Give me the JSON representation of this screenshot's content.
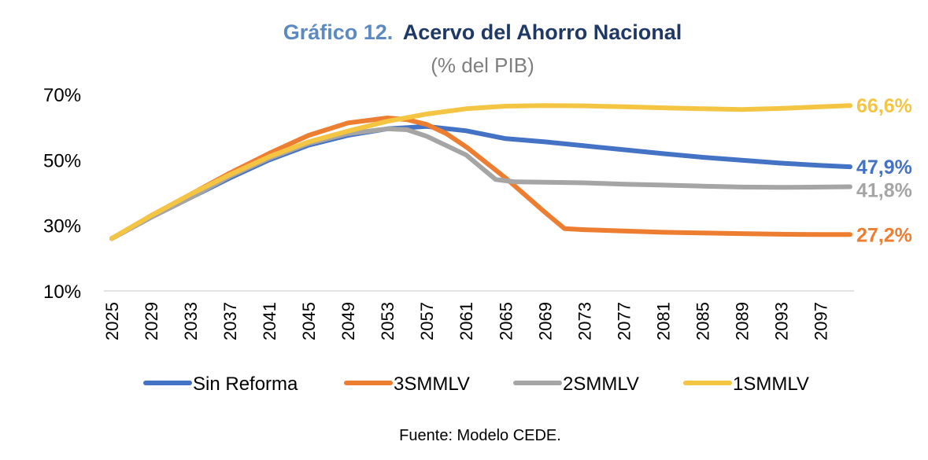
{
  "chart_data": {
    "type": "line",
    "title_prefix": "Gráfico 12.",
    "title": "Acervo del Ahorro Nacional",
    "subtitle": "(% del PIB)",
    "source": "Fuente: Modelo CEDE.",
    "xlabel": "",
    "ylabel": "",
    "ylim": [
      10,
      70
    ],
    "yticks": [
      {
        "value": 10,
        "label": "10%"
      },
      {
        "value": 30,
        "label": "30%"
      },
      {
        "value": 50,
        "label": "50%"
      },
      {
        "value": 70,
        "label": "70%"
      }
    ],
    "xlim": [
      2025,
      2100
    ],
    "xticks": [
      "2025",
      "2029",
      "2033",
      "2037",
      "2041",
      "2045",
      "2049",
      "2053",
      "2057",
      "2061",
      "2065",
      "2069",
      "2073",
      "2077",
      "2081",
      "2085",
      "2089",
      "2093",
      "2097"
    ],
    "grid": false,
    "legend": "bottom",
    "series": [
      {
        "name": "Sin Reforma",
        "color": "#4472c4",
        "end_label": "47,9%",
        "points": [
          [
            2025,
            26
          ],
          [
            2029,
            32.5
          ],
          [
            2033,
            38.5
          ],
          [
            2037,
            44.5
          ],
          [
            2041,
            50
          ],
          [
            2045,
            54.5
          ],
          [
            2049,
            57.5
          ],
          [
            2053,
            59.5
          ],
          [
            2057,
            60.2
          ],
          [
            2061,
            58.9
          ],
          [
            2065,
            56.5
          ],
          [
            2069,
            55.5
          ],
          [
            2073,
            54.3
          ],
          [
            2077,
            53.1
          ],
          [
            2081,
            51.9
          ],
          [
            2085,
            50.8
          ],
          [
            2089,
            49.9
          ],
          [
            2093,
            49.0
          ],
          [
            2097,
            48.3
          ],
          [
            2100,
            47.9
          ]
        ]
      },
      {
        "name": "3SMMLV",
        "color": "#ed7d31",
        "end_label": "27,2%",
        "points": [
          [
            2025,
            26
          ],
          [
            2029,
            33
          ],
          [
            2033,
            39.5
          ],
          [
            2037,
            46
          ],
          [
            2041,
            52
          ],
          [
            2045,
            57.5
          ],
          [
            2049,
            61.3
          ],
          [
            2053,
            62.8
          ],
          [
            2055,
            62.3
          ],
          [
            2057,
            60.8
          ],
          [
            2059,
            58
          ],
          [
            2061,
            54
          ],
          [
            2065,
            44.5
          ],
          [
            2069,
            34
          ],
          [
            2071,
            29
          ],
          [
            2073,
            28.7
          ],
          [
            2077,
            28.3
          ],
          [
            2081,
            27.9
          ],
          [
            2085,
            27.7
          ],
          [
            2089,
            27.5
          ],
          [
            2093,
            27.3
          ],
          [
            2097,
            27.2
          ],
          [
            2100,
            27.2
          ]
        ]
      },
      {
        "name": "2SMMLV",
        "color": "#a5a5a5",
        "end_label": "41,8%",
        "points": [
          [
            2025,
            26
          ],
          [
            2029,
            32.5
          ],
          [
            2033,
            38.5
          ],
          [
            2037,
            45
          ],
          [
            2041,
            50.5
          ],
          [
            2045,
            55
          ],
          [
            2049,
            58
          ],
          [
            2053,
            59.5
          ],
          [
            2055,
            59.2
          ],
          [
            2057,
            57.2
          ],
          [
            2061,
            51.5
          ],
          [
            2064,
            44
          ],
          [
            2066,
            43.3
          ],
          [
            2069,
            43.2
          ],
          [
            2073,
            43
          ],
          [
            2077,
            42.6
          ],
          [
            2081,
            42.3
          ],
          [
            2085,
            42
          ],
          [
            2089,
            41.7
          ],
          [
            2093,
            41.6
          ],
          [
            2097,
            41.7
          ],
          [
            2100,
            41.8
          ]
        ]
      },
      {
        "name": "1SMMLV",
        "color": "#f4c542",
        "end_label": "66,6%",
        "points": [
          [
            2025,
            26
          ],
          [
            2029,
            33
          ],
          [
            2033,
            39.5
          ],
          [
            2037,
            45.5
          ],
          [
            2041,
            51
          ],
          [
            2045,
            55.5
          ],
          [
            2049,
            58.8
          ],
          [
            2053,
            61.8
          ],
          [
            2057,
            64
          ],
          [
            2061,
            65.6
          ],
          [
            2065,
            66.4
          ],
          [
            2069,
            66.6
          ],
          [
            2073,
            66.5
          ],
          [
            2077,
            66.2
          ],
          [
            2081,
            65.9
          ],
          [
            2085,
            65.6
          ],
          [
            2089,
            65.4
          ],
          [
            2093,
            65.7
          ],
          [
            2097,
            66.2
          ],
          [
            2100,
            66.6
          ]
        ]
      }
    ]
  }
}
